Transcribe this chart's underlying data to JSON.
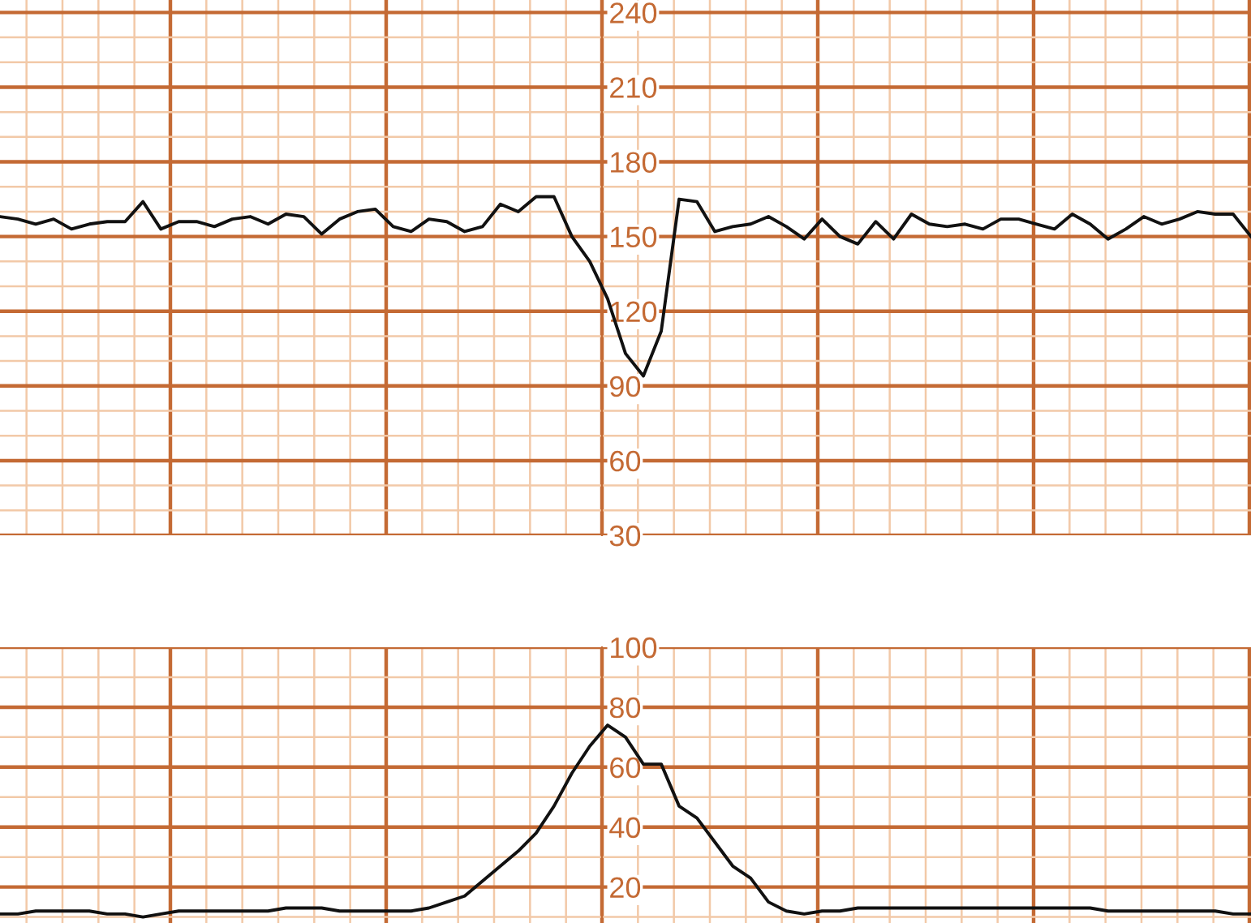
{
  "chart_data": [
    {
      "type": "line",
      "categories": [
        null,
        null,
        null,
        null,
        null,
        null,
        null,
        null,
        null,
        null,
        null,
        null,
        null,
        null,
        null,
        null,
        null,
        null,
        null,
        null,
        null,
        null,
        null,
        null,
        null,
        null,
        null,
        null,
        null,
        null,
        null,
        null,
        null,
        null,
        null,
        null,
        null,
        null,
        null,
        null,
        null,
        null,
        null,
        null,
        null,
        null,
        null,
        null,
        null,
        null,
        null,
        null,
        null,
        null,
        null,
        null,
        null,
        null,
        null,
        null,
        null,
        null,
        null,
        null,
        null,
        null,
        null,
        null,
        null,
        null,
        null
      ],
      "ylim": [
        30,
        245
      ],
      "yticks": [
        30,
        60,
        90,
        120,
        150,
        180,
        210,
        240
      ],
      "grid": true,
      "series": [
        {
          "color": "#111111",
          "values": [
            158,
            157,
            155,
            157,
            153,
            155,
            156,
            156,
            164,
            153,
            156,
            156,
            154,
            157,
            158,
            155,
            159,
            158,
            151,
            157,
            160,
            161,
            154,
            152,
            157,
            156,
            152,
            154,
            163,
            160,
            166,
            166,
            150,
            140,
            125,
            103,
            94,
            112,
            165,
            164,
            152,
            154,
            155,
            158,
            154,
            149,
            157,
            150,
            147,
            156,
            149,
            159,
            155,
            154,
            155,
            153,
            157,
            157,
            155,
            153,
            159,
            155,
            149,
            153,
            158,
            155,
            157,
            160,
            159,
            159,
            150
          ]
        }
      ]
    },
    {
      "type": "line",
      "categories": [
        null,
        null,
        null,
        null,
        null,
        null,
        null,
        null,
        null,
        null,
        null,
        null,
        null,
        null,
        null,
        null,
        null,
        null,
        null,
        null,
        null,
        null,
        null,
        null,
        null,
        null,
        null,
        null,
        null,
        null,
        null,
        null,
        null,
        null,
        null,
        null,
        null,
        null,
        null,
        null,
        null,
        null,
        null,
        null,
        null,
        null,
        null,
        null,
        null,
        null,
        null,
        null,
        null,
        null,
        null,
        null,
        null,
        null,
        null,
        null,
        null,
        null,
        null,
        null,
        null,
        null,
        null,
        null,
        null,
        null,
        null
      ],
      "ylim": [
        8,
        100
      ],
      "yticks": [
        20,
        40,
        60,
        80,
        100
      ],
      "grid": true,
      "series": [
        {
          "color": "#111111",
          "values": [
            11,
            11,
            12,
            12,
            12,
            12,
            11,
            11,
            10,
            11,
            12,
            12,
            12,
            12,
            12,
            12,
            13,
            13,
            13,
            12,
            12,
            12,
            12,
            12,
            13,
            15,
            17,
            22,
            27,
            32,
            38,
            47,
            58,
            67,
            74,
            70,
            61,
            61,
            47,
            43,
            35,
            27,
            23,
            15,
            12,
            11,
            12,
            12,
            13,
            13,
            13,
            13,
            13,
            13,
            13,
            13,
            13,
            13,
            13,
            13,
            13,
            13,
            12,
            12,
            12,
            12,
            12,
            12,
            12,
            11,
            11
          ]
        }
      ]
    }
  ]
}
